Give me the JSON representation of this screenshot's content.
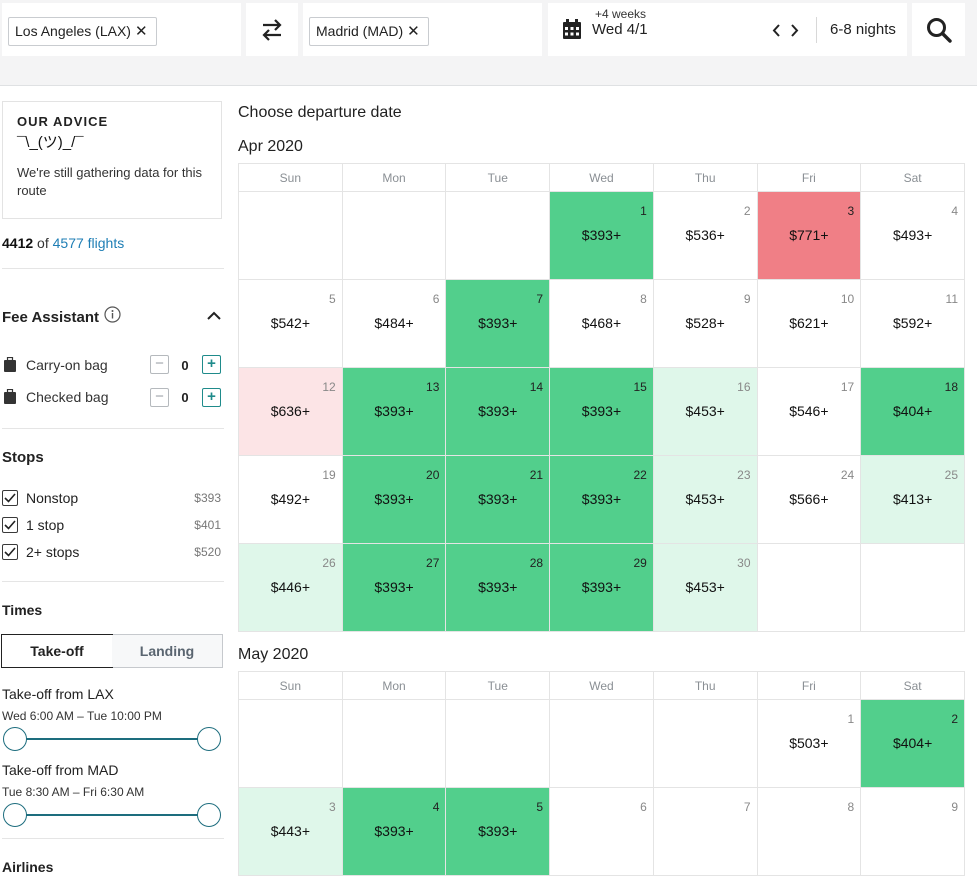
{
  "search": {
    "origin": "Los Angeles (LAX)",
    "destination": "Madrid (MAD)",
    "flex_label": "+4 weeks",
    "date": "Wed 4/1",
    "nights": "6-8 nights",
    "remove_glyph": "✕"
  },
  "sidebar": {
    "advice_title": "OUR ADVICE",
    "advice_emoji": "¯\\_(ツ)_/¯",
    "advice_text": "We're still gathering data for this route",
    "count_shown": "4412",
    "count_of": " of ",
    "count_total": "4577 flights",
    "fee_title": "Fee Assistant",
    "bags": [
      {
        "label": "Carry-on bag",
        "value": "0"
      },
      {
        "label": "Checked bag",
        "value": "0"
      }
    ],
    "stops_title": "Stops",
    "stops": [
      {
        "label": "Nonstop",
        "price": "$393"
      },
      {
        "label": "1 stop",
        "price": "$401"
      },
      {
        "label": "2+ stops",
        "price": "$520"
      }
    ],
    "times_title": "Times",
    "tabs": [
      "Take-off",
      "Landing"
    ],
    "times": [
      {
        "title": "Take-off from LAX",
        "range": "Wed 6:00 AM  –  Tue 10:00 PM"
      },
      {
        "title": "Take-off from MAD",
        "range": "Tue 8:30 AM  –  Fri 6:30 AM"
      }
    ],
    "airlines_title": "Airlines"
  },
  "calendar": {
    "heading": "Choose departure date",
    "weekdays": [
      "Sun",
      "Mon",
      "Tue",
      "Wed",
      "Thu",
      "Fri",
      "Sat"
    ],
    "months": [
      {
        "title": "Apr 2020",
        "weeks": [
          [
            null,
            null,
            null,
            {
              "day": "1",
              "price": "$393+",
              "tone": "g"
            },
            {
              "day": "2",
              "price": "$536+",
              "tone": ""
            },
            {
              "day": "3",
              "price": "$771+",
              "tone": "r"
            },
            {
              "day": "4",
              "price": "$493+",
              "tone": ""
            }
          ],
          [
            {
              "day": "5",
              "price": "$542+",
              "tone": ""
            },
            {
              "day": "6",
              "price": "$484+",
              "tone": ""
            },
            {
              "day": "7",
              "price": "$393+",
              "tone": "g"
            },
            {
              "day": "8",
              "price": "$468+",
              "tone": ""
            },
            {
              "day": "9",
              "price": "$528+",
              "tone": ""
            },
            {
              "day": "10",
              "price": "$621+",
              "tone": ""
            },
            {
              "day": "11",
              "price": "$592+",
              "tone": ""
            }
          ],
          [
            {
              "day": "12",
              "price": "$636+",
              "tone": "lr"
            },
            {
              "day": "13",
              "price": "$393+",
              "tone": "g"
            },
            {
              "day": "14",
              "price": "$393+",
              "tone": "g"
            },
            {
              "day": "15",
              "price": "$393+",
              "tone": "g"
            },
            {
              "day": "16",
              "price": "$453+",
              "tone": "lg"
            },
            {
              "day": "17",
              "price": "$546+",
              "tone": ""
            },
            {
              "day": "18",
              "price": "$404+",
              "tone": "g"
            }
          ],
          [
            {
              "day": "19",
              "price": "$492+",
              "tone": ""
            },
            {
              "day": "20",
              "price": "$393+",
              "tone": "g"
            },
            {
              "day": "21",
              "price": "$393+",
              "tone": "g"
            },
            {
              "day": "22",
              "price": "$393+",
              "tone": "g"
            },
            {
              "day": "23",
              "price": "$453+",
              "tone": "lg"
            },
            {
              "day": "24",
              "price": "$566+",
              "tone": ""
            },
            {
              "day": "25",
              "price": "$413+",
              "tone": "lg"
            }
          ],
          [
            {
              "day": "26",
              "price": "$446+",
              "tone": "lg"
            },
            {
              "day": "27",
              "price": "$393+",
              "tone": "g"
            },
            {
              "day": "28",
              "price": "$393+",
              "tone": "g"
            },
            {
              "day": "29",
              "price": "$393+",
              "tone": "g"
            },
            {
              "day": "30",
              "price": "$453+",
              "tone": "lg"
            },
            null,
            null
          ]
        ]
      },
      {
        "title": "May 2020",
        "weeks": [
          [
            null,
            null,
            null,
            null,
            null,
            {
              "day": "1",
              "price": "$503+",
              "tone": ""
            },
            {
              "day": "2",
              "price": "$404+",
              "tone": "g"
            }
          ],
          [
            {
              "day": "3",
              "price": "$443+",
              "tone": "lg"
            },
            {
              "day": "4",
              "price": "$393+",
              "tone": "g"
            },
            {
              "day": "5",
              "price": "$393+",
              "tone": "g"
            },
            {
              "day": "6",
              "price": "",
              "tone": ""
            },
            {
              "day": "7",
              "price": "",
              "tone": ""
            },
            {
              "day": "8",
              "price": "",
              "tone": ""
            },
            {
              "day": "9",
              "price": "",
              "tone": ""
            }
          ]
        ]
      }
    ]
  },
  "colors": {
    "cheapest": "#52cf8c",
    "cheap": "#dff7ea",
    "expensive": "#f07f86",
    "pricey": "#fce4e6",
    "accent": "#1d6d7e"
  }
}
